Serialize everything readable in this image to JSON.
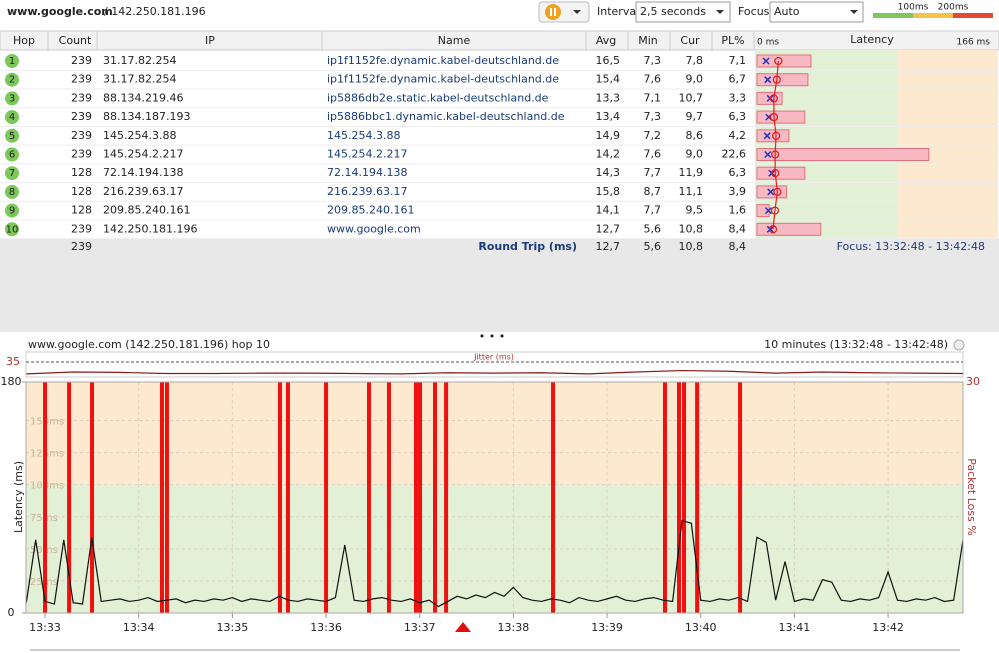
{
  "toolbar": {
    "target": "www.google.com",
    "ip": "/ 142.250.181.196",
    "interval_label": "Interval",
    "interval": "2,5 seconds",
    "focus_label": "Focus",
    "focus": "Auto",
    "scale_labels": [
      "100ms",
      "200ms"
    ]
  },
  "table": {
    "headers": [
      "Hop",
      "Count",
      "IP",
      "Name",
      "Avg",
      "Min",
      "Cur",
      "PL%"
    ],
    "latency_header": {
      "min_label": "0 ms",
      "title": "Latency",
      "max_label": "166 ms",
      "xlim": [
        0,
        166
      ]
    },
    "rows": [
      [
        "1",
        "239",
        "31.17.82.254",
        "ip1f1152fe.dynamic.kabel-deutschland.de",
        "16,5",
        "7,3",
        "7,8",
        "7,1"
      ],
      [
        "2",
        "239",
        "31.17.82.254",
        "ip1f1152fe.dynamic.kabel-deutschland.de",
        "15,4",
        "7,6",
        "9,0",
        "6,7"
      ],
      [
        "3",
        "239",
        "88.134.219.46",
        "ip5886db2e.static.kabel-deutschland.de",
        "13,3",
        "7,1",
        "10,7",
        "3,3"
      ],
      [
        "4",
        "239",
        "88.134.187.193",
        "ip5886bbc1.dynamic.kabel-deutschland.de",
        "13,4",
        "7,3",
        "9,7",
        "6,3"
      ],
      [
        "5",
        "239",
        "145.254.3.88",
        "145.254.3.88",
        "14,9",
        "7,2",
        "8,6",
        "4,2"
      ],
      [
        "6",
        "239",
        "145.254.2.217",
        "145.254.2.217",
        "14,2",
        "7,6",
        "9,0",
        "22,6"
      ],
      [
        "7",
        "128",
        "72.14.194.138",
        "72.14.194.138",
        "14,3",
        "7,7",
        "11,9",
        "6,3"
      ],
      [
        "8",
        "128",
        "216.239.63.17",
        "216.239.63.17",
        "15,8",
        "8,7",
        "11,1",
        "3,9"
      ],
      [
        "9",
        "128",
        "209.85.240.161",
        "209.85.240.161",
        "14,1",
        "7,7",
        "9,5",
        "1,6"
      ],
      [
        "10",
        "239",
        "142.250.181.196",
        "www.google.com",
        "12,7",
        "5,6",
        "10,8",
        "8,4"
      ]
    ],
    "summary": {
      "count": "239",
      "label": "Round Trip (ms)",
      "avg": "12,7",
      "min": "5,6",
      "cur": "10,8",
      "pl": "8,4",
      "focus": "Focus: 13:32:48 - 13:42:48"
    }
  },
  "graph": {
    "title": "www.google.com (142.250.181.196) hop 10",
    "range": "10 minutes (13:32:48 - 13:42:48)",
    "jitter_label": "Jitter (ms)",
    "jitter_ylim": [
      0,
      35
    ],
    "jitter_yticks": [
      35
    ],
    "jitter_x": [
      0,
      30,
      60,
      90,
      120,
      150,
      180,
      210,
      240,
      270,
      300,
      330,
      360,
      390,
      420,
      450,
      480,
      510,
      540,
      570,
      600
    ],
    "jitter": [
      3,
      8,
      7,
      4,
      4,
      5,
      5,
      4,
      3,
      6,
      5,
      6,
      3,
      8,
      12,
      10,
      5,
      8,
      6,
      5,
      4
    ],
    "ylabel": "Latency (ms)",
    "y2label": "Packet Loss %",
    "ylim": [
      0,
      180
    ],
    "yticks": [
      0,
      {
        "value": 25,
        "label": "25ms"
      },
      {
        "value": 50,
        "label": "50ms"
      },
      {
        "value": 75,
        "label": "75ms"
      },
      {
        "value": 100,
        "label": "100ms"
      },
      {
        "value": 125,
        "label": "125ms"
      },
      {
        "value": 150,
        "label": "150ms"
      },
      180
    ],
    "y2lim": [
      0,
      30
    ],
    "y2ticks": [
      30
    ],
    "xlim": [
      0,
      600
    ],
    "xticks": [
      {
        "value": 12,
        "label": "13:33"
      },
      {
        "value": 72,
        "label": "13:34"
      },
      {
        "value": 132,
        "label": "13:35"
      },
      {
        "value": 192,
        "label": "13:36"
      },
      {
        "value": 252,
        "label": "13:37"
      },
      {
        "value": 312,
        "label": "13:38"
      },
      {
        "value": 372,
        "label": "13:39"
      },
      {
        "value": 432,
        "label": "13:40"
      },
      {
        "value": 492,
        "label": "13:41"
      },
      {
        "value": 552,
        "label": "13:42"
      }
    ],
    "x": [
      0,
      6,
      12,
      18,
      24,
      30,
      36,
      42,
      48,
      54,
      60,
      66,
      72,
      78,
      84,
      90,
      96,
      102,
      108,
      114,
      120,
      126,
      132,
      138,
      144,
      150,
      156,
      162,
      168,
      174,
      180,
      186,
      192,
      198,
      204,
      210,
      216,
      222,
      228,
      234,
      240,
      246,
      252,
      258,
      264,
      270,
      276,
      282,
      288,
      294,
      300,
      306,
      312,
      318,
      324,
      330,
      336,
      342,
      348,
      354,
      360,
      366,
      372,
      378,
      384,
      390,
      396,
      402,
      408,
      414,
      420,
      426,
      432,
      438,
      444,
      450,
      456,
      462,
      468,
      474,
      480,
      486,
      492,
      498,
      504,
      510,
      516,
      522,
      528,
      534,
      540,
      546,
      552,
      558,
      564,
      570,
      576,
      582,
      588,
      594,
      600
    ],
    "latency": [
      8,
      57,
      9,
      7,
      57,
      8,
      7,
      59,
      9,
      10,
      11,
      9,
      10,
      12,
      9,
      10,
      11,
      8,
      10,
      9,
      11,
      10,
      12,
      9,
      11,
      10,
      9,
      13,
      10,
      9,
      11,
      10,
      9,
      12,
      53,
      10,
      9,
      11,
      12,
      10,
      9,
      11,
      8,
      10,
      5,
      9,
      13,
      11,
      14,
      12,
      16,
      13,
      20,
      12,
      10,
      9,
      11,
      10,
      8,
      12,
      10,
      9,
      11,
      13,
      10,
      9,
      11,
      12,
      10,
      9,
      72,
      70,
      10,
      9,
      11,
      10,
      12,
      9,
      59,
      55,
      10,
      40,
      9,
      11,
      10,
      26,
      24,
      10,
      9,
      11,
      10,
      12,
      32,
      10,
      9,
      11,
      10,
      12,
      9,
      10,
      57
    ],
    "loss_at": [
      12,
      27.4,
      42.1,
      86.9,
      90.1,
      162.5,
      167.6,
      192,
      219.5,
      232.3,
      249.6,
      252.2,
      261.8,
      268.9,
      337.4,
      409.1,
      418.1,
      421.3,
      429.7,
      457.2
    ]
  }
}
